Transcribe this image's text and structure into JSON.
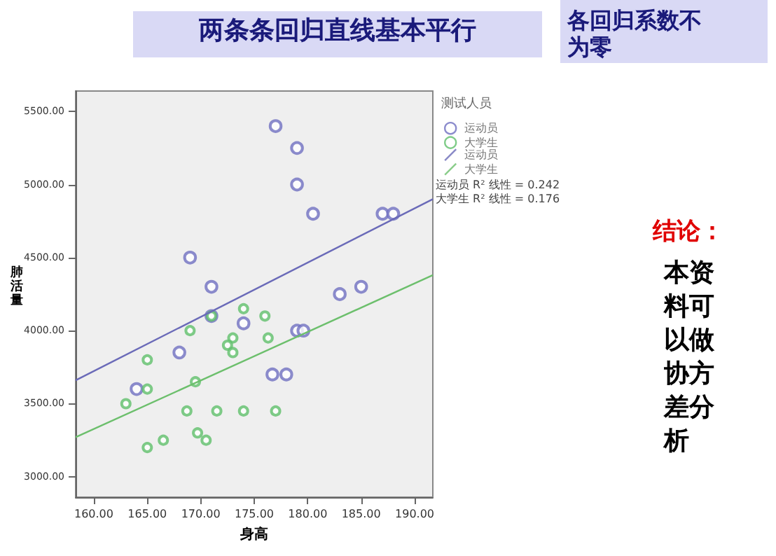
{
  "chart_data": {
    "type": "scatter",
    "title": "两条条回归直线基本平行",
    "xlabel": "身高",
    "ylabel": "肺活量",
    "legend_title": "测试人员",
    "legend": "right",
    "marker": "circle",
    "grid": false,
    "annotations": [
      "各回归系数不为零",
      "结论：",
      "本资料可以做协方差分析",
      "运动员 R² 线性 = 0.242",
      "大学生 R² 线性 = 0.176"
    ],
    "xlim": [
      158.3,
      191.7
    ],
    "ylim": [
      2860,
      5640
    ],
    "xticks": [
      {
        "value": 160,
        "label": "160.00"
      },
      {
        "value": 165,
        "label": "165.00"
      },
      {
        "value": 170,
        "label": "170.00"
      },
      {
        "value": 175,
        "label": "175.00"
      },
      {
        "value": 180,
        "label": "180.00"
      },
      {
        "value": 185,
        "label": "185.00"
      },
      {
        "value": 190,
        "label": "190.00"
      }
    ],
    "yticks": [
      {
        "value": 3000,
        "label": "3000.00"
      },
      {
        "value": 3500,
        "label": "3500.00"
      },
      {
        "value": 4000,
        "label": "4000.00"
      },
      {
        "value": 4500,
        "label": "4500.00"
      },
      {
        "value": 5000,
        "label": "5000.00"
      },
      {
        "value": 5500,
        "label": "5500.00"
      }
    ],
    "series": [
      {
        "name": "运动员",
        "color": "#6f6fc0",
        "x": [
          177,
          179,
          179,
          180.5,
          187,
          188,
          169,
          171,
          183,
          185,
          171,
          174,
          168,
          164,
          176.7,
          178,
          179,
          179.6
        ],
        "values": [
          5400,
          5250,
          5000,
          4800,
          4800,
          4800,
          4500,
          4300,
          4250,
          4300,
          4100,
          4050,
          3850,
          3600,
          3700,
          3700,
          4000,
          4000
        ]
      },
      {
        "name": "大学生",
        "color": "#5fbf6a",
        "x": [
          174,
          176,
          171,
          169,
          173,
          172.5,
          173,
          176.3,
          165,
          165,
          169.5,
          163,
          168.7,
          171.5,
          174,
          177,
          169.7,
          170.5,
          166.5,
          165
        ],
        "values": [
          4150,
          4100,
          4100,
          4000,
          3950,
          3900,
          3850,
          3950,
          3800,
          3600,
          3650,
          3500,
          3450,
          3450,
          3450,
          3450,
          3300,
          3250,
          3250,
          3200
        ]
      },
      {
        "name": "运动员",
        "type": "line",
        "marker": "none",
        "color": "#6a6ab8",
        "x": [
          158.3,
          191.7
        ],
        "values": [
          3660,
          4900
        ]
      },
      {
        "name": "大学生",
        "type": "line",
        "marker": "none",
        "color": "#6cbf6c",
        "x": [
          158.3,
          191.7
        ],
        "values": [
          3270,
          4380
        ]
      }
    ]
  }
}
